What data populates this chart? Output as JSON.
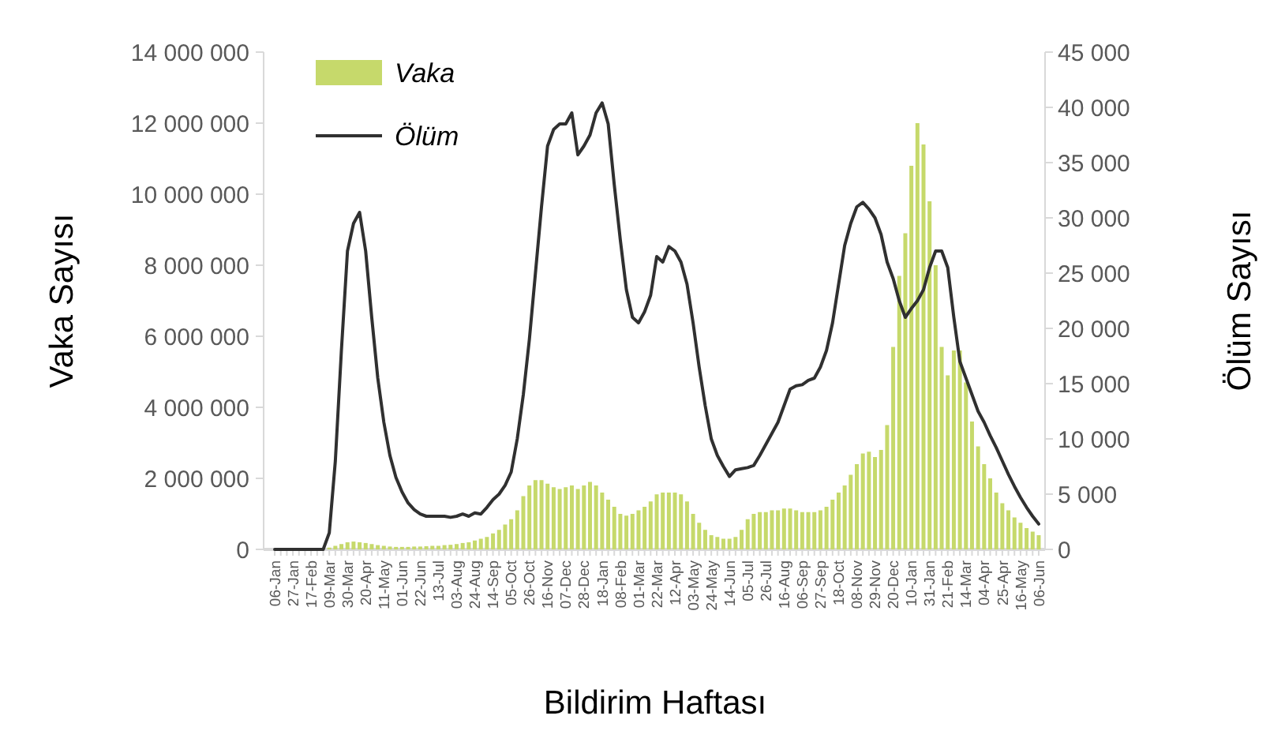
{
  "chart_data": {
    "type": "bar",
    "xlabel": "Bildirim Haftası",
    "ylabel": "Vaka Sayısı",
    "y2label": "Ölüm Sayısı",
    "legend": "top left",
    "grid": false,
    "categories": [
      "06-Jan",
      null,
      null,
      "27-Jan",
      null,
      null,
      "17-Feb",
      null,
      null,
      "09-Mar",
      null,
      null,
      "30-Mar",
      null,
      null,
      "20-Apr",
      null,
      null,
      "11-May",
      null,
      null,
      "01-Jun",
      null,
      null,
      "22-Jun",
      null,
      null,
      "13-Jul",
      null,
      null,
      "03-Aug",
      null,
      null,
      "24-Aug",
      null,
      null,
      "14-Sep",
      null,
      null,
      "05-Oct",
      null,
      null,
      "26-Oct",
      null,
      null,
      "16-Nov",
      null,
      null,
      "07-Dec",
      null,
      null,
      "28-Dec",
      null,
      null,
      "18-Jan",
      null,
      null,
      "08-Feb",
      null,
      null,
      "01-Mar",
      null,
      null,
      "22-Mar",
      null,
      null,
      "12-Apr",
      null,
      null,
      "03-May",
      null,
      null,
      "24-May",
      null,
      null,
      "14-Jun",
      null,
      null,
      "05-Jul",
      null,
      null,
      "26-Jul",
      null,
      null,
      "16-Aug",
      null,
      null,
      "06-Sep",
      null,
      null,
      "27-Sep",
      null,
      null,
      "18-Oct",
      null,
      null,
      "08-Nov",
      null,
      null,
      "29-Nov",
      null,
      null,
      "20-Dec",
      null,
      null,
      "10-Jan",
      null,
      null,
      "31-Jan",
      null,
      null,
      "21-Feb",
      null,
      null,
      "14-Mar",
      null,
      null,
      "04-Apr",
      null,
      null,
      "25-Apr",
      null,
      null,
      "16-May",
      null,
      null,
      "06-Jun"
    ],
    "ylim": [
      0,
      14000000
    ],
    "yticks": [
      0,
      {
        "value": 2000000,
        "label": "2 000 000"
      },
      {
        "value": 4000000,
        "label": "4 000 000"
      },
      {
        "value": 6000000,
        "label": "6 000 000"
      },
      {
        "value": 8000000,
        "label": "8 000 000"
      },
      {
        "value": 10000000,
        "label": "10 000 000"
      },
      {
        "value": 12000000,
        "label": "12 000 000"
      },
      {
        "value": 14000000,
        "label": "14 000 000"
      }
    ],
    "y2lim": [
      0,
      45000
    ],
    "y2ticks": [
      0,
      {
        "value": 5000,
        "label": "5 000"
      },
      {
        "value": 10000,
        "label": "10 000"
      },
      {
        "value": 15000,
        "label": "15 000"
      },
      {
        "value": 20000,
        "label": "20 000"
      },
      {
        "value": 25000,
        "label": "25 000"
      },
      {
        "value": 30000,
        "label": "30 000"
      },
      {
        "value": 35000,
        "label": "35 000"
      },
      {
        "value": 40000,
        "label": "40 000"
      },
      {
        "value": 45000,
        "label": "45 000"
      }
    ],
    "series": [
      {
        "name": "Vaka",
        "color": "#c6d96b",
        "values": [
          0,
          0,
          0,
          0,
          0,
          0,
          0,
          0,
          0,
          50000,
          100000,
          150000,
          200000,
          220000,
          200000,
          180000,
          150000,
          120000,
          100000,
          80000,
          70000,
          70000,
          70000,
          80000,
          80000,
          90000,
          100000,
          100000,
          120000,
          130000,
          150000,
          180000,
          200000,
          250000,
          300000,
          350000,
          450000,
          550000,
          700000,
          850000,
          1100000,
          1500000,
          1800000,
          1950000,
          1950000,
          1850000,
          1750000,
          1700000,
          1750000,
          1800000,
          1700000,
          1800000,
          1900000,
          1800000,
          1600000,
          1400000,
          1200000,
          1000000,
          950000,
          1000000,
          1100000,
          1200000,
          1350000,
          1550000,
          1600000,
          1600000,
          1600000,
          1550000,
          1350000,
          1000000,
          750000,
          550000,
          400000,
          350000,
          300000,
          300000,
          350000,
          550000,
          850000,
          1000000,
          1050000,
          1050000,
          1100000,
          1100000,
          1150000,
          1150000,
          1100000,
          1050000,
          1050000,
          1050000,
          1100000,
          1200000,
          1400000,
          1600000,
          1800000,
          2100000,
          2400000,
          2700000,
          2750000,
          2600000,
          2800000,
          3500000,
          5700000,
          7700000,
          8900000,
          10800000,
          12000000,
          11400000,
          9800000,
          8000000,
          5700000,
          4900000,
          5600000,
          5600000,
          4700000,
          3600000,
          2900000,
          2400000,
          2000000,
          1600000,
          1300000,
          1100000,
          900000,
          750000,
          600000,
          500000,
          400000
        ]
      },
      {
        "name": "Ölüm",
        "type": "line",
        "axis": "y2",
        "color": "#303030",
        "marker": "none",
        "line_style": "solid",
        "values": [
          0,
          0,
          0,
          0,
          0,
          0,
          0,
          0,
          0,
          1500,
          8000,
          18000,
          27000,
          29500,
          30500,
          27000,
          21000,
          15500,
          11500,
          8500,
          6500,
          5200,
          4200,
          3600,
          3200,
          3000,
          3000,
          3000,
          3000,
          2900,
          3000,
          3200,
          3000,
          3300,
          3200,
          3800,
          4500,
          5000,
          5800,
          7000,
          10000,
          14000,
          19000,
          25000,
          31000,
          36500,
          38000,
          38500,
          38500,
          39500,
          35700,
          36500,
          37500,
          39500,
          40400,
          38500,
          33000,
          28000,
          23500,
          21000,
          20500,
          21500,
          23000,
          26500,
          26000,
          27400,
          27000,
          26000,
          24000,
          20500,
          16500,
          13000,
          10000,
          8500,
          7500,
          6600,
          7200,
          7300,
          7400,
          7600,
          8500,
          9500,
          10500,
          11500,
          13000,
          14500,
          14800,
          14900,
          15300,
          15500,
          16500,
          18000,
          20500,
          24000,
          27500,
          29500,
          31000,
          31400,
          30800,
          30000,
          28500,
          26000,
          24500,
          22500,
          21000,
          21800,
          22500,
          23500,
          25500,
          27000,
          27000,
          25500,
          21000,
          17000,
          15500,
          14000,
          12500,
          11500,
          10300,
          9200,
          8000,
          6800,
          5700,
          4700,
          3800,
          3000,
          2300
        ]
      }
    ]
  }
}
